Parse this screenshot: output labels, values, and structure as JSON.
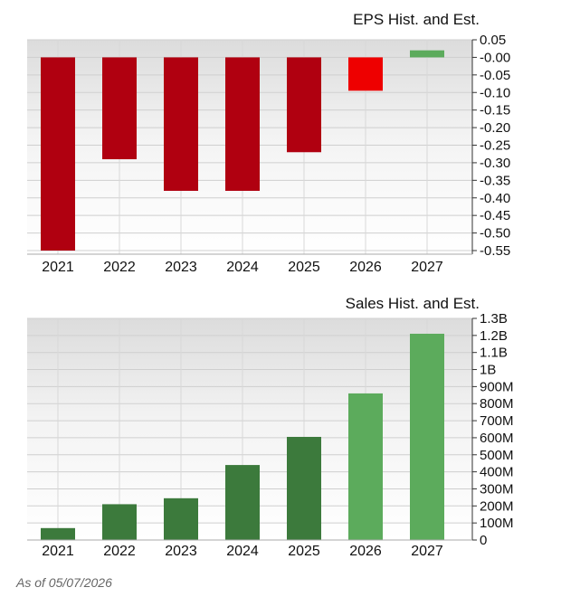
{
  "footnote": "As of 05/07/2026",
  "colors": {
    "hist_red": "#b00010",
    "est_red": "#ee0000",
    "hist_green": "#3c7a3c",
    "est_green": "#5cab5c"
  },
  "chart_data": [
    {
      "type": "bar",
      "title": "EPS Hist. and Est.",
      "categories": [
        "2021",
        "2022",
        "2023",
        "2024",
        "2025",
        "2026",
        "2027"
      ],
      "values": [
        -0.56,
        -0.29,
        -0.38,
        -0.38,
        -0.27,
        -0.095,
        0.02
      ],
      "estimate": [
        false,
        false,
        false,
        false,
        false,
        true,
        true
      ],
      "ylim": [
        -0.55,
        0.05
      ],
      "yticks": [
        {
          "value": 0.05,
          "label": "0.05"
        },
        {
          "value": 0.0,
          "label": "-0.00"
        },
        {
          "value": -0.05,
          "label": "-0.05"
        },
        {
          "value": -0.1,
          "label": "-0.10"
        },
        {
          "value": -0.15,
          "label": "-0.15"
        },
        {
          "value": -0.2,
          "label": "-0.20"
        },
        {
          "value": -0.25,
          "label": "-0.25"
        },
        {
          "value": -0.3,
          "label": "-0.30"
        },
        {
          "value": -0.35,
          "label": "-0.35"
        },
        {
          "value": -0.4,
          "label": "-0.40"
        },
        {
          "value": -0.45,
          "label": "-0.45"
        },
        {
          "value": -0.5,
          "label": "-0.50"
        },
        {
          "value": -0.55,
          "label": "-0.55"
        }
      ],
      "grid": true
    },
    {
      "type": "bar",
      "title": "Sales Hist. and Est.",
      "categories": [
        "2021",
        "2022",
        "2023",
        "2024",
        "2025",
        "2026",
        "2027"
      ],
      "values": [
        70,
        210,
        245,
        440,
        605,
        860,
        1210
      ],
      "value_unit": "millions",
      "estimate": [
        false,
        false,
        false,
        false,
        false,
        true,
        true
      ],
      "ylim": [
        0,
        1300
      ],
      "yticks": [
        {
          "value": 1300,
          "label": "1.3B"
        },
        {
          "value": 1200,
          "label": "1.2B"
        },
        {
          "value": 1100,
          "label": "1.1B"
        },
        {
          "value": 1000,
          "label": "1B"
        },
        {
          "value": 900,
          "label": "900M"
        },
        {
          "value": 800,
          "label": "800M"
        },
        {
          "value": 700,
          "label": "700M"
        },
        {
          "value": 600,
          "label": "600M"
        },
        {
          "value": 500,
          "label": "500M"
        },
        {
          "value": 400,
          "label": "400M"
        },
        {
          "value": 300,
          "label": "300M"
        },
        {
          "value": 200,
          "label": "200M"
        },
        {
          "value": 100,
          "label": "100M"
        },
        {
          "value": 0,
          "label": "0"
        }
      ],
      "grid": true
    }
  ]
}
